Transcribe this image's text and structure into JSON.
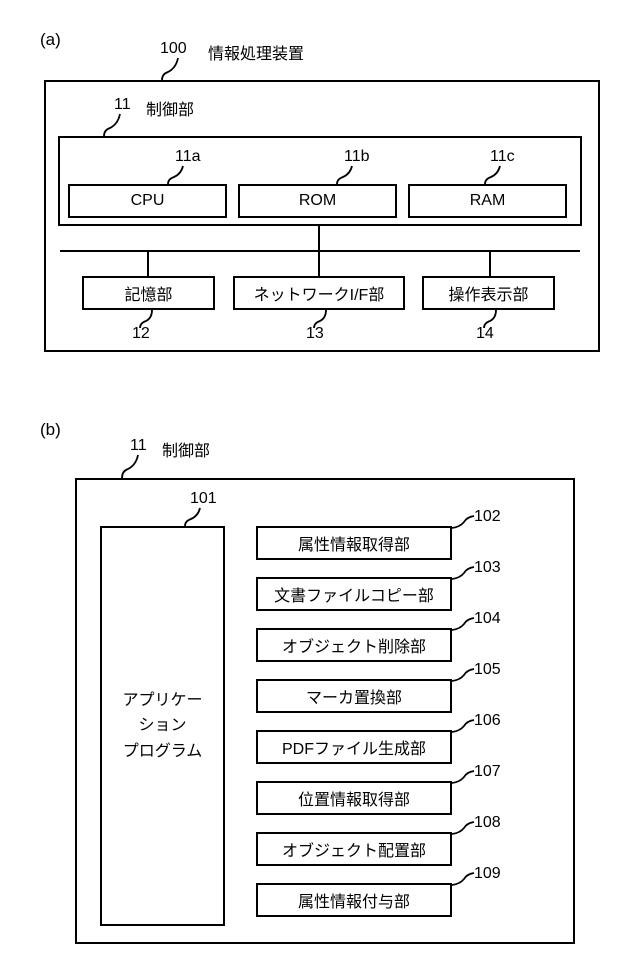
{
  "section_a": {
    "label": "(a)",
    "device": {
      "ref": "100",
      "name": "情報処理装置"
    },
    "controller": {
      "ref": "11",
      "name": "制御部"
    },
    "cpu": {
      "ref": "11a",
      "name": "CPU"
    },
    "rom": {
      "ref": "11b",
      "name": "ROM"
    },
    "ram": {
      "ref": "11c",
      "name": "RAM"
    },
    "storage": {
      "ref": "12",
      "name": "記憶部"
    },
    "netif": {
      "ref": "13",
      "name": "ネットワークI/F部"
    },
    "opdisp": {
      "ref": "14",
      "name": "操作表示部"
    }
  },
  "section_b": {
    "label": "(b)",
    "controller": {
      "ref": "11",
      "name": "制御部"
    },
    "app": {
      "ref": "101",
      "name": "アプリケーションプログラム"
    },
    "mods": [
      {
        "ref": "102",
        "name": "属性情報取得部"
      },
      {
        "ref": "103",
        "name": "文書ファイルコピー部"
      },
      {
        "ref": "104",
        "name": "オブジェクト削除部"
      },
      {
        "ref": "105",
        "name": "マーカ置換部"
      },
      {
        "ref": "106",
        "name": "PDFファイル生成部"
      },
      {
        "ref": "107",
        "name": "位置情報取得部"
      },
      {
        "ref": "108",
        "name": "オブジェクト配置部"
      },
      {
        "ref": "109",
        "name": "属性情報付与部"
      }
    ]
  },
  "style": {
    "stroke": "#000000",
    "stroke_width": 2,
    "font_size": 16
  }
}
